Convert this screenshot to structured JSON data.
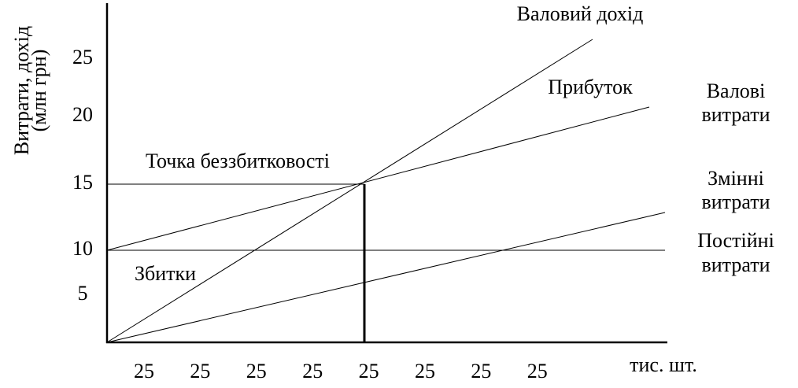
{
  "y_axis": {
    "title": [
      "Витрати, дохід",
      "(млн грн)"
    ],
    "labels": [
      "25",
      "20",
      "15",
      "10",
      "5"
    ]
  },
  "x_axis": {
    "labels": [
      "25",
      "25",
      "25",
      "25",
      "25",
      "25",
      "25",
      "25"
    ],
    "unit": "тис. шт."
  },
  "annotations": {
    "gross_revenue": "Валовий дохід",
    "profit": "Прибуток",
    "gross_costs": [
      "Валові",
      "витрати"
    ],
    "variable_costs": [
      "Змінні",
      "витрати"
    ],
    "fixed_costs": [
      "Постійні",
      "витрати"
    ],
    "break_even": "Точка беззбитковості",
    "losses": "Збитки"
  }
}
